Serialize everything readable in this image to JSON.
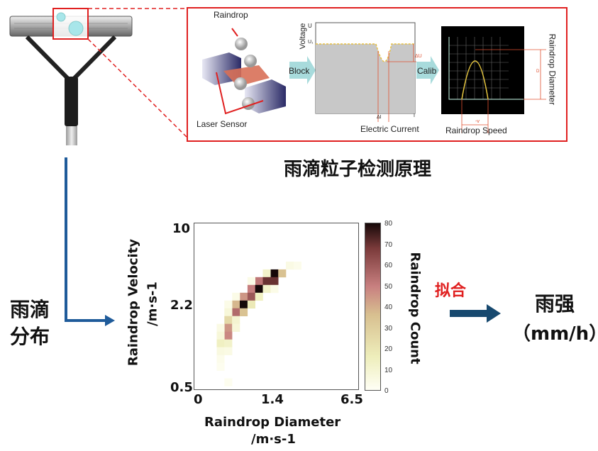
{
  "principle": {
    "title": "雨滴粒子检测原理",
    "raindrop_label": "Raindrop",
    "laser_sensor_label": "Laser Sensor",
    "block_label": "Block",
    "calib_label": "Calib",
    "voltage_label": "Voltage",
    "u_label": "U",
    "u0_label": "U₁",
    "delta_u_label": "ΔU",
    "delta_i_label": "ΔI",
    "i_label": "I",
    "current_label": "Electric Current",
    "diameter_label": "Raindrop Diameter",
    "d_label": "D",
    "v_label": "-v",
    "speed_label": "Raindrop Speed"
  },
  "flow": {
    "distribution_label_1": "雨滴",
    "distribution_label_2": "分布",
    "fit_label": "拟合",
    "result_label": "雨强",
    "result_unit": "（mm/h）"
  },
  "colors": {
    "frame": "#e02020",
    "flow_arrow": "#1f5b9a",
    "fit_arrow": "#17496f",
    "fit_text": "#e02020",
    "block_arrow": "#a8dbdc"
  },
  "chart_data": {
    "type": "heatmap",
    "xlabel": "Raindrop Diameter",
    "xlabel_unit": "/m·s-1",
    "ylabel": "Raindrop Velocity",
    "ylabel_unit": "/m·s-1",
    "x_ticks": [
      "0",
      "1.4",
      "6.5"
    ],
    "y_ticks": [
      "10",
      "2.2",
      "0.5"
    ],
    "colorbar": {
      "label": "Raindrop Count",
      "range": [
        0,
        80
      ],
      "ticks": [
        "80",
        "70",
        "60",
        "50",
        "40",
        "30",
        "20",
        "10",
        "0"
      ],
      "colormap": [
        "#fffff6",
        "#eeeebb",
        "#d8c090",
        "#c88080",
        "#7a3a3a",
        "#150808"
      ]
    },
    "bins": 21.5,
    "cells": [
      [
        10,
        6,
        80
      ],
      [
        11,
        6,
        35
      ],
      [
        9,
        6,
        12
      ],
      [
        12,
        5,
        5
      ],
      [
        13,
        5,
        3
      ],
      [
        8,
        7,
        52
      ],
      [
        9,
        7,
        70
      ],
      [
        10,
        7,
        70
      ],
      [
        7,
        7,
        4
      ],
      [
        7,
        8,
        50
      ],
      [
        8,
        8,
        80
      ],
      [
        9,
        8,
        12
      ],
      [
        10,
        8,
        4
      ],
      [
        6,
        9,
        45
      ],
      [
        7,
        9,
        60
      ],
      [
        8,
        9,
        14
      ],
      [
        5,
        9,
        4
      ],
      [
        5,
        10,
        38
      ],
      [
        6,
        10,
        80
      ],
      [
        7,
        10,
        18
      ],
      [
        4,
        10,
        4
      ],
      [
        5,
        11,
        55
      ],
      [
        6,
        11,
        35
      ],
      [
        4,
        11,
        8
      ],
      [
        4,
        12,
        25
      ],
      [
        5,
        12,
        10
      ],
      [
        4,
        13,
        45
      ],
      [
        3,
        13,
        5
      ],
      [
        5,
        13,
        8
      ],
      [
        4,
        14,
        48
      ],
      [
        3,
        14,
        8
      ],
      [
        3,
        15,
        14
      ],
      [
        4,
        15,
        12
      ],
      [
        3,
        16,
        6
      ],
      [
        4,
        16,
        5
      ],
      [
        3,
        17,
        3
      ],
      [
        3,
        18,
        2
      ],
      [
        4,
        20,
        2
      ]
    ]
  }
}
